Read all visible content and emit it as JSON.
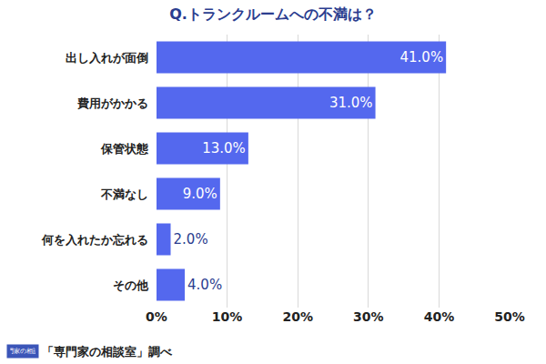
{
  "chart_data": {
    "type": "bar",
    "title": "Q.トランクルームへの不満は？",
    "orientation": "horizontal",
    "categories": [
      "出し入れが面倒",
      "費用がかかる",
      "保管状態",
      "不満なし",
      "何を入れたか忘れる",
      "その他"
    ],
    "values": [
      41.0,
      31.0,
      13.0,
      9.0,
      2.0,
      4.0
    ],
    "value_labels": [
      "41.0%",
      "31.0%",
      "13.0%",
      "9.0%",
      "2.0%",
      "4.0%"
    ],
    "data_labels": true,
    "color": "#5468ee",
    "xlim": [
      0,
      50
    ],
    "xticks": [
      {
        "value": 0,
        "label": "0%"
      },
      {
        "value": 10,
        "label": "10%"
      },
      {
        "value": 20,
        "label": "20%"
      },
      {
        "value": 30,
        "label": "30%"
      },
      {
        "value": 40,
        "label": "40%"
      },
      {
        "value": 50,
        "label": "50%"
      }
    ],
    "grid": true,
    "annotations": [
      "専門家の相談室",
      "「専門家の相談室」調べ"
    ]
  }
}
